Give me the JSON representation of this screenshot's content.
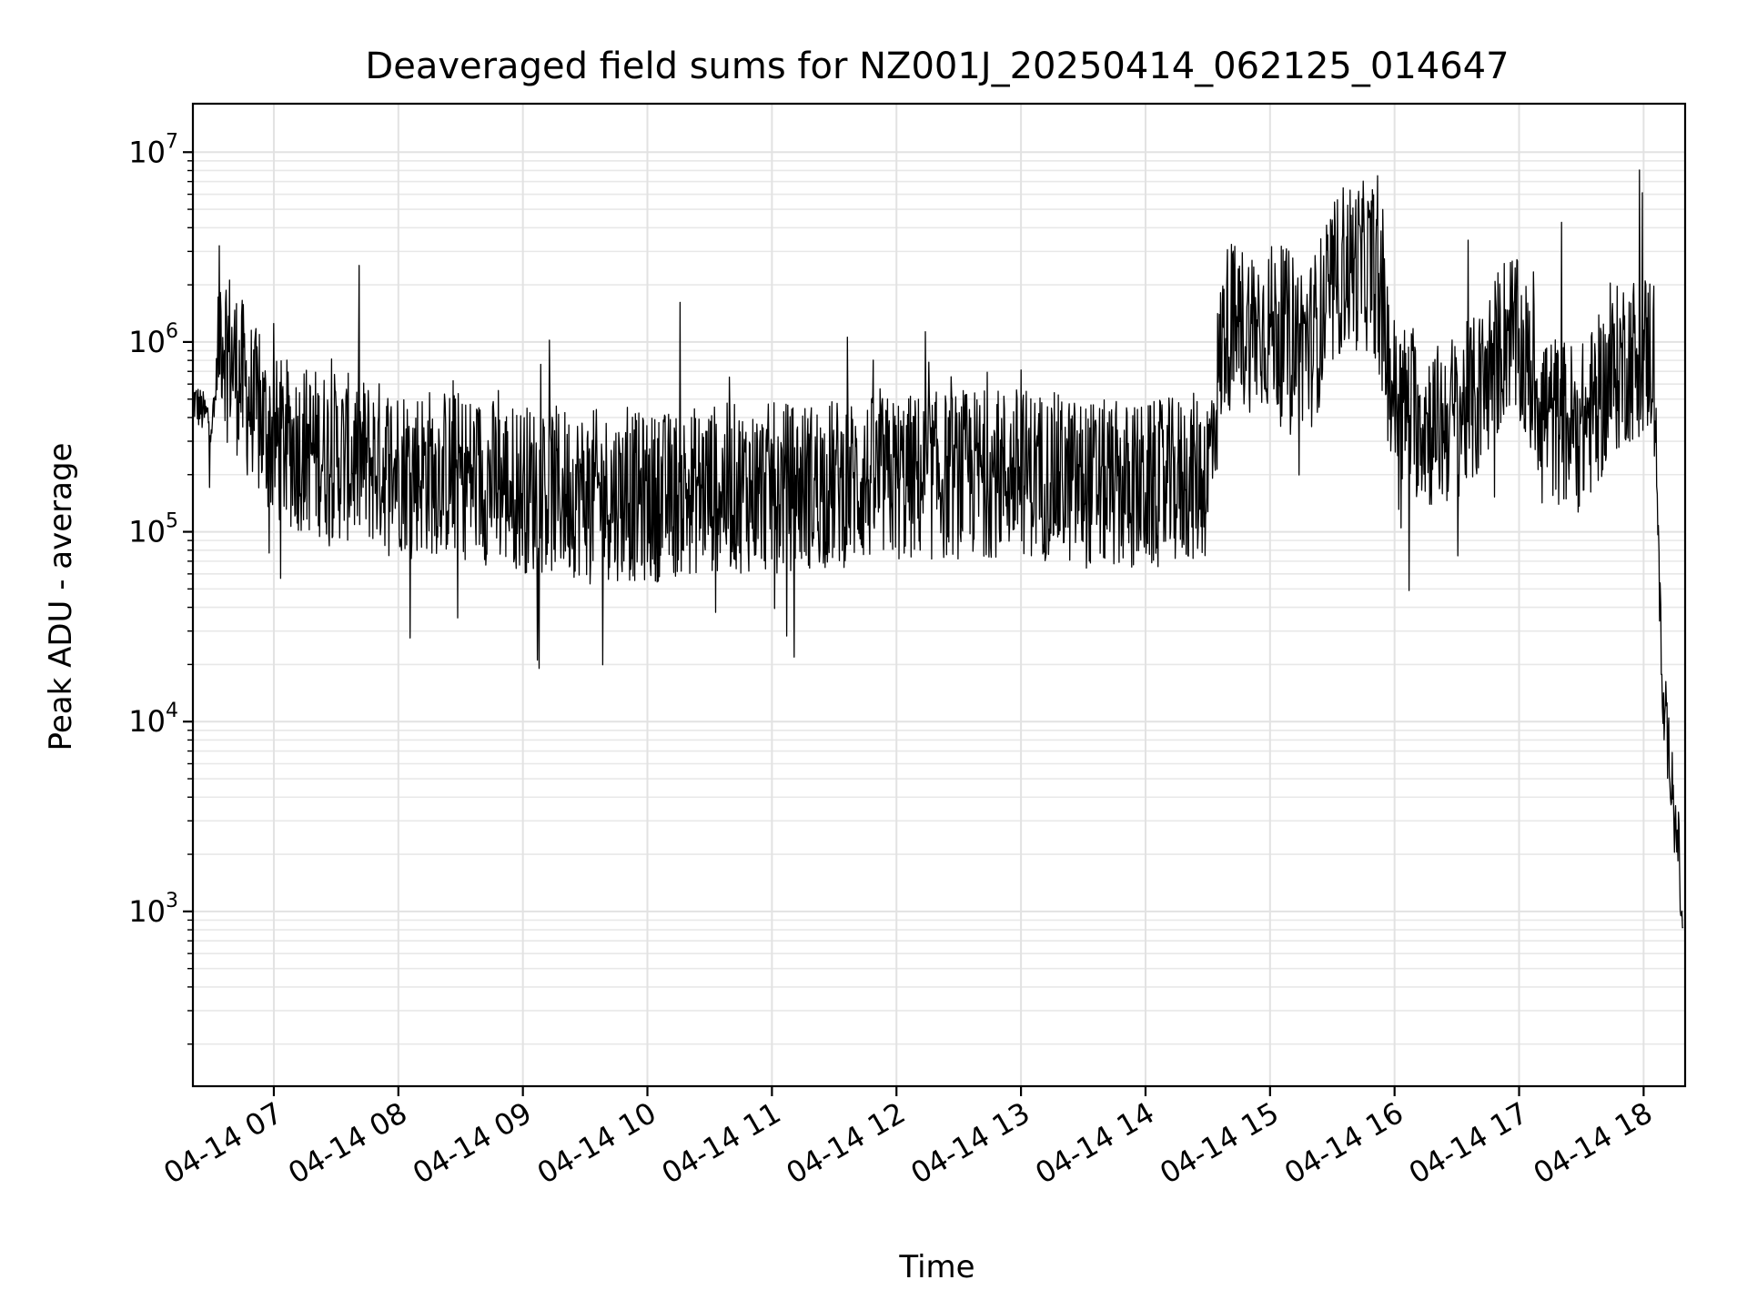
{
  "chart_data": {
    "type": "line",
    "title": "Deaveraged field sums for NZ001J_20250414_062125_014647",
    "xlabel": "Time",
    "ylabel": "Peak ADU - average",
    "y_scale": "log",
    "ylim": [
      120,
      18000000
    ],
    "xlim": [
      "2025-04-14 06:21",
      "2025-04-14 18:20"
    ],
    "grid": true,
    "x_ticks": [
      {
        "value": "2025-04-14 07:00",
        "label": "04-14 07"
      },
      {
        "value": "2025-04-14 08:00",
        "label": "04-14 08"
      },
      {
        "value": "2025-04-14 09:00",
        "label": "04-14 09"
      },
      {
        "value": "2025-04-14 10:00",
        "label": "04-14 10"
      },
      {
        "value": "2025-04-14 11:00",
        "label": "04-14 11"
      },
      {
        "value": "2025-04-14 12:00",
        "label": "04-14 12"
      },
      {
        "value": "2025-04-14 13:00",
        "label": "04-14 13"
      },
      {
        "value": "2025-04-14 14:00",
        "label": "04-14 14"
      },
      {
        "value": "2025-04-14 15:00",
        "label": "04-14 15"
      },
      {
        "value": "2025-04-14 16:00",
        "label": "04-14 16"
      },
      {
        "value": "2025-04-14 17:00",
        "label": "04-14 17"
      },
      {
        "value": "2025-04-14 18:00",
        "label": "04-14 18"
      }
    ],
    "y_ticks": [
      {
        "value": 1000,
        "base": "10",
        "exp": "3"
      },
      {
        "value": 10000,
        "base": "10",
        "exp": "4"
      },
      {
        "value": 100000,
        "base": "10",
        "exp": "5"
      },
      {
        "value": 1000000,
        "base": "10",
        "exp": "6"
      },
      {
        "value": 10000000,
        "base": "10",
        "exp": "7"
      }
    ],
    "series": [
      {
        "color": "#000000",
        "points": [
          {
            "x": "2025-04-14 06:21",
            "y": 500000
          },
          {
            "x": "2025-04-14 06:26",
            "y": 420000
          },
          {
            "x": "2025-04-14 06:31",
            "y": 380000
          },
          {
            "x": "2025-04-14 06:34",
            "y": 1300000
          },
          {
            "x": "2025-04-14 06:40",
            "y": 800000
          },
          {
            "x": "2025-04-14 06:50",
            "y": 450000
          },
          {
            "x": "2025-04-14 07:00",
            "y": 300000
          },
          {
            "x": "2025-04-14 07:30",
            "y": 250000
          },
          {
            "x": "2025-04-14 08:00",
            "y": 220000
          },
          {
            "x": "2025-04-14 08:30",
            "y": 200000
          },
          {
            "x": "2025-04-14 09:00",
            "y": 170000
          },
          {
            "x": "2025-04-14 09:30",
            "y": 160000
          },
          {
            "x": "2025-04-14 10:00",
            "y": 150000
          },
          {
            "x": "2025-04-14 10:30",
            "y": 170000
          },
          {
            "x": "2025-04-14 11:00",
            "y": 170000
          },
          {
            "x": "2025-04-14 11:30",
            "y": 180000
          },
          {
            "x": "2025-04-14 12:00",
            "y": 190000
          },
          {
            "x": "2025-04-14 12:30",
            "y": 200000
          },
          {
            "x": "2025-04-14 13:00",
            "y": 210000
          },
          {
            "x": "2025-04-14 13:30",
            "y": 180000
          },
          {
            "x": "2025-04-14 14:00",
            "y": 170000
          },
          {
            "x": "2025-04-14 14:30",
            "y": 200000
          },
          {
            "x": "2025-04-14 14:38",
            "y": 1200000
          },
          {
            "x": "2025-04-14 15:00",
            "y": 1200000
          },
          {
            "x": "2025-04-14 15:20",
            "y": 1000000
          },
          {
            "x": "2025-04-14 15:35",
            "y": 2500000
          },
          {
            "x": "2025-04-14 15:50",
            "y": 2500000
          },
          {
            "x": "2025-04-14 16:00",
            "y": 500000
          },
          {
            "x": "2025-04-14 16:20",
            "y": 350000
          },
          {
            "x": "2025-04-14 16:40",
            "y": 500000
          },
          {
            "x": "2025-04-14 16:55",
            "y": 1200000
          },
          {
            "x": "2025-04-14 17:15",
            "y": 400000
          },
          {
            "x": "2025-04-14 17:30",
            "y": 350000
          },
          {
            "x": "2025-04-14 17:50",
            "y": 800000
          },
          {
            "x": "2025-04-14 18:05",
            "y": 900000
          },
          {
            "x": "2025-04-14 18:09",
            "y": 12000
          },
          {
            "x": "2025-04-14 18:14",
            "y": 5000
          },
          {
            "x": "2025-04-14 18:17",
            "y": 2000
          },
          {
            "x": "2025-04-14 18:19",
            "y": 600
          }
        ]
      }
    ]
  }
}
